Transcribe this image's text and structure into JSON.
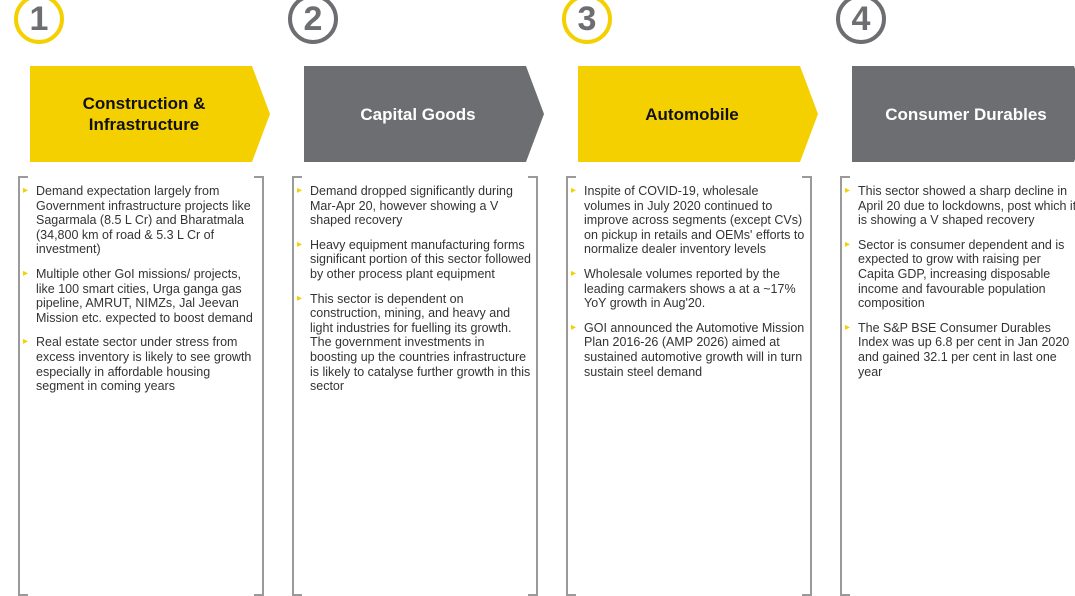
{
  "columns": [
    {
      "number": "1",
      "title": "Construction & Infrastructure",
      "color": "#f5d000",
      "text_color": "#111111",
      "bullets": [
        "Demand expectation largely from Government infrastructure projects like Sagarmala (8.5 L Cr) and Bharatmala (34,800 km of road & 5.3 L Cr of investment)",
        "Multiple other GoI missions/ projects, like 100 smart cities, Urga ganga gas pipeline, AMRUT, NIMZs, Jal Jeevan Mission etc. expected to boost demand",
        "Real estate sector under stress from excess inventory is likely to see growth especially in affordable housing segment in coming years"
      ]
    },
    {
      "number": "2",
      "title": "Capital Goods",
      "color": "#6d6e71",
      "text_color": "#ffffff",
      "bullets": [
        "Demand dropped significantly during Mar-Apr 20, however showing a V shaped recovery",
        "Heavy equipment manufacturing forms significant portion of this sector followed by other process plant equipment",
        "This sector is dependent on construction, mining, and heavy and light industries for fuelling its growth. The government investments in boosting up the countries infrastructure is likely to catalyse further growth in this sector"
      ]
    },
    {
      "number": "3",
      "title": "Automobile",
      "color": "#f5d000",
      "text_color": "#111111",
      "bullets": [
        "Inspite of COVID-19, wholesale volumes in July 2020 continued to improve across segments (except CVs) on pickup in retails and OEMs' efforts to normalize dealer inventory levels",
        "Wholesale volumes reported by the leading carmakers shows a at a ~17% YoY growth in Aug'20.",
        "GOI announced the Automotive Mission Plan 2016-26 (AMP 2026) aimed at sustained automotive growth will in turn sustain steel demand"
      ]
    },
    {
      "number": "4",
      "title": "Consumer Durables",
      "color": "#6d6e71",
      "text_color": "#ffffff",
      "bullets": [
        "This sector showed a sharp decline in April 20 due to lockdowns, post which it is showing a V shaped recovery",
        "Sector is consumer dependent and is expected to grow with raising per Capita GDP, increasing disposable income and favourable population composition",
        "The S&P BSE Consumer Durables Index was up 6.8 per cent in Jan 2020 and gained 32.1 per cent in last one year"
      ]
    }
  ]
}
